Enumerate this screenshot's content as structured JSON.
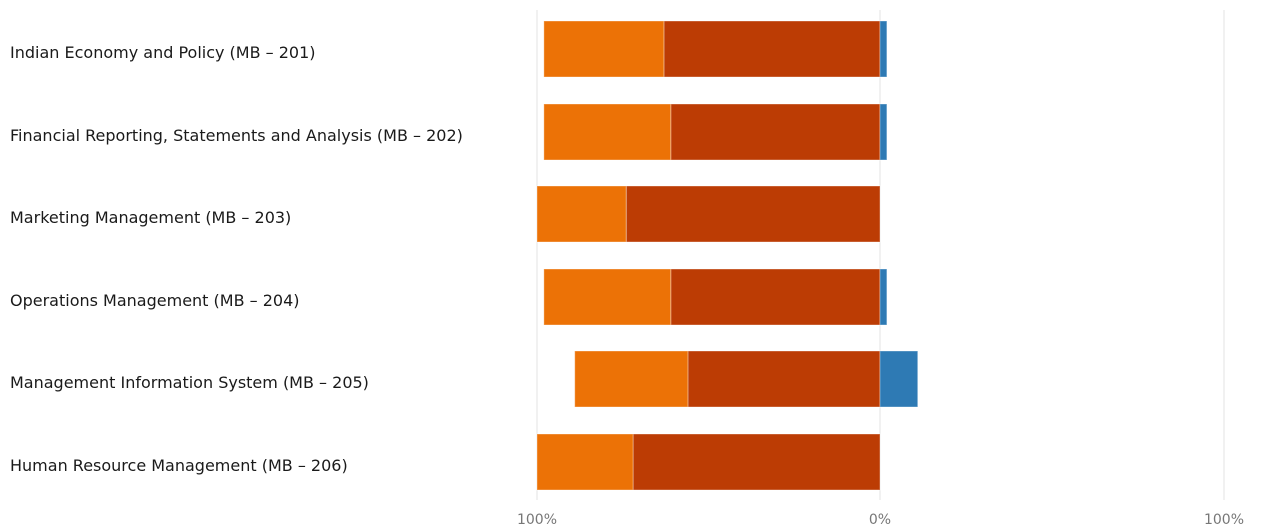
{
  "chart_data": {
    "type": "bar",
    "orientation": "horizontal",
    "stacking": "diverging-percent",
    "categories": [
      "Indian Economy and Policy (MB – 201)",
      "Financial Reporting, Statements and Analysis (MB – 202)",
      "Marketing Management (MB – 203)",
      "Operations Management (MB – 204)",
      "Management Information System (MB – 205)",
      "Human Resource Management (MB – 206)"
    ],
    "series": [
      {
        "color": "#bc3c04",
        "side": "left",
        "values": [
          63,
          61,
          74,
          61,
          56,
          72
        ]
      },
      {
        "color": "#ec7206",
        "side": "left",
        "values": [
          35,
          37,
          26,
          37,
          33,
          28
        ]
      },
      {
        "color": "#2e7ab4",
        "side": "right",
        "values": [
          2,
          2,
          0,
          2,
          11,
          0
        ]
      }
    ],
    "xticks": [
      "100%",
      "0%",
      "100%"
    ],
    "xlim": [
      -100,
      100
    ],
    "grid": true,
    "legend": "none",
    "title": "",
    "xlabel": "",
    "ylabel": ""
  }
}
